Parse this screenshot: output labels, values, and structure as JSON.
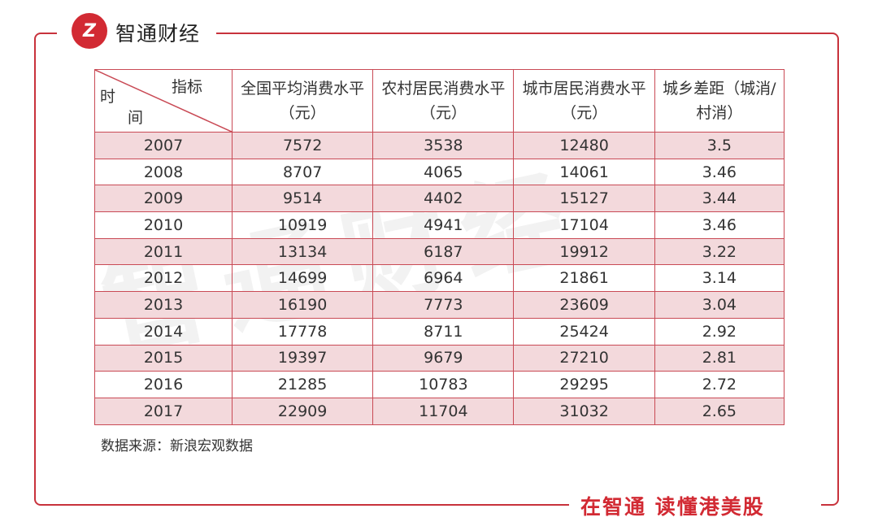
{
  "brand": {
    "name": "智通财经",
    "logo_text": "Z",
    "slogan": "在智通 读懂港美股",
    "accent": "#d22a33"
  },
  "table": {
    "corner_top": "指标",
    "corner_left_1": "时",
    "corner_left_2": "间",
    "headers": [
      "全国平均消费水平（元）",
      "农村居民消费水平（元）",
      "城市居民消费水平（元）",
      "城乡差距（城消/村消）"
    ],
    "rows": [
      [
        "2007",
        "7572",
        "3538",
        "12480",
        "3.5"
      ],
      [
        "2008",
        "8707",
        "4065",
        "14061",
        "3.46"
      ],
      [
        "2009",
        "9514",
        "4402",
        "15127",
        "3.44"
      ],
      [
        "2010",
        "10919",
        "4941",
        "17104",
        "3.46"
      ],
      [
        "2011",
        "13134",
        "6187",
        "19912",
        "3.22"
      ],
      [
        "2012",
        "14699",
        "6964",
        "21861",
        "3.14"
      ],
      [
        "2013",
        "16190",
        "7773",
        "23609",
        "3.04"
      ],
      [
        "2014",
        "17778",
        "8711",
        "25424",
        "2.92"
      ],
      [
        "2015",
        "19397",
        "9679",
        "27210",
        "2.81"
      ],
      [
        "2016",
        "21285",
        "10783",
        "29295",
        "2.72"
      ],
      [
        "2017",
        "22909",
        "11704",
        "31032",
        "2.65"
      ]
    ]
  },
  "source": "数据来源：新浪宏观数据"
}
